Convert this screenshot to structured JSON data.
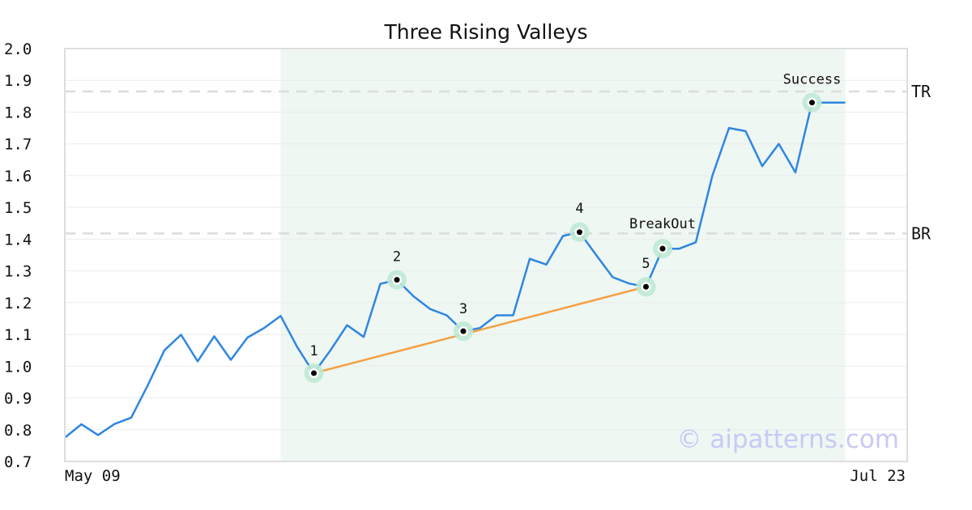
{
  "chart_data": {
    "type": "line",
    "title": "Three Rising Valleys",
    "xlabel": "",
    "ylabel": "",
    "ylim": [
      0.7,
      2.0
    ],
    "yticks": [
      "0.7",
      "0.8",
      "0.9",
      "1.0",
      "1.1",
      "1.2",
      "1.3",
      "1.4",
      "1.5",
      "1.6",
      "1.7",
      "1.8",
      "1.9",
      "2.0"
    ],
    "x_labels": {
      "start": "May 09",
      "end": "Jul 23"
    },
    "grid": true,
    "colors": {
      "line": "#2f86e0",
      "trend": "#f5a043",
      "highlight_band": "#eef7f2",
      "marker_ring": "#bfe9d4",
      "reference_line": "#dcdcdc"
    },
    "series": [
      {
        "values": [
          0.775,
          0.817,
          0.783,
          0.818,
          0.838,
          0.94,
          1.05,
          1.099,
          1.015,
          1.094,
          1.02,
          1.09,
          1.12,
          1.158,
          1.06,
          0.978,
          1.05,
          1.129,
          1.092,
          1.259,
          1.272,
          1.22,
          1.18,
          1.16,
          1.11,
          1.12,
          1.16,
          1.16,
          1.338,
          1.32,
          1.41,
          1.422,
          1.35,
          1.28,
          1.26,
          1.25,
          1.37,
          1.37,
          1.39,
          1.6,
          1.75,
          1.74,
          1.63,
          1.7,
          1.61,
          1.83,
          1.83,
          1.83
        ]
      }
    ],
    "highlight_range": [
      13,
      47
    ],
    "reference_lines": [
      {
        "label": "TR",
        "value": 1.865
      },
      {
        "label": "BR",
        "value": 1.418
      }
    ],
    "trendline": [
      {
        "index": 15,
        "value": 0.978
      },
      {
        "index": 35,
        "value": 1.25
      }
    ],
    "points": [
      {
        "label": "1",
        "index": 15,
        "value": 0.978
      },
      {
        "label": "2",
        "index": 20,
        "value": 1.272
      },
      {
        "label": "3",
        "index": 24,
        "value": 1.11
      },
      {
        "label": "4",
        "index": 31,
        "value": 1.422
      },
      {
        "label": "5",
        "index": 35,
        "value": 1.25
      },
      {
        "label": "BreakOut",
        "index": 36,
        "value": 1.37
      },
      {
        "label": "Success",
        "index": 45,
        "value": 1.83
      }
    ],
    "watermark": "© aipatterns.com"
  }
}
